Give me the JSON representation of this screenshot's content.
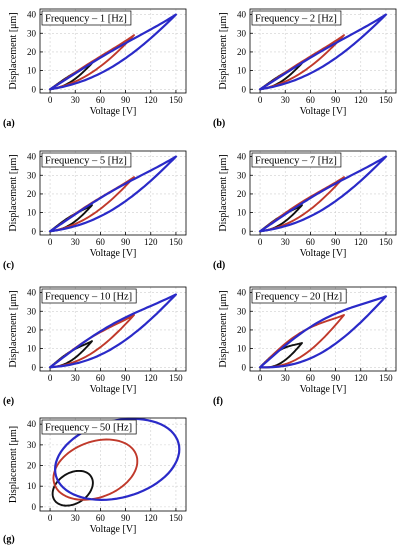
{
  "figure": {
    "panel_letters": [
      "(a)",
      "(b)",
      "(c)",
      "(d)",
      "(e)",
      "(f)",
      "(g)"
    ]
  },
  "chart_data": [
    {
      "type": "line",
      "title": "Frequency – 1 [Hz]",
      "xlabel": "Voltage [V]",
      "ylabel": "Displacement [μm]",
      "xlim": [
        -12,
        162
      ],
      "ylim": [
        -2,
        43
      ],
      "xticks": [
        0,
        30,
        60,
        90,
        120,
        150
      ],
      "yticks": [
        0,
        10,
        20,
        30,
        40
      ],
      "grid": true,
      "series": [
        {
          "color": "#111111",
          "loop": {
            "vmax": 50,
            "dmax": 14,
            "a": 12,
            "b": 2.5
          }
        },
        {
          "color": "#c0392b",
          "loop": {
            "vmax": 100,
            "dmax": 29,
            "a": 24,
            "b": 4
          }
        },
        {
          "color": "#2a2ac8",
          "loop": {
            "vmax": 150,
            "dmax": 40,
            "a": 38,
            "b": 6
          }
        }
      ]
    },
    {
      "type": "line",
      "title": "Frequency – 2 [Hz]",
      "xlabel": "Voltage [V]",
      "ylabel": "Displacement [μm]",
      "xlim": [
        -12,
        162
      ],
      "ylim": [
        -2,
        43
      ],
      "xticks": [
        0,
        30,
        60,
        90,
        120,
        150
      ],
      "yticks": [
        0,
        10,
        20,
        30,
        40
      ],
      "grid": true,
      "series": [
        {
          "color": "#111111",
          "loop": {
            "vmax": 50,
            "dmax": 14,
            "a": 12,
            "b": 2.5
          }
        },
        {
          "color": "#c0392b",
          "loop": {
            "vmax": 100,
            "dmax": 29,
            "a": 24,
            "b": 4
          }
        },
        {
          "color": "#2a2ac8",
          "loop": {
            "vmax": 150,
            "dmax": 40,
            "a": 38,
            "b": 6
          }
        }
      ]
    },
    {
      "type": "line",
      "title": "Frequency – 5 [Hz]",
      "xlabel": "Voltage [V]",
      "ylabel": "Displacement [μm]",
      "xlim": [
        -12,
        162
      ],
      "ylim": [
        -2,
        43
      ],
      "xticks": [
        0,
        30,
        60,
        90,
        120,
        150
      ],
      "yticks": [
        0,
        10,
        20,
        30,
        40
      ],
      "grid": true,
      "series": [
        {
          "color": "#111111",
          "loop": {
            "vmax": 50,
            "dmax": 14,
            "a": 12,
            "b": 3
          }
        },
        {
          "color": "#c0392b",
          "loop": {
            "vmax": 100,
            "dmax": 29,
            "a": 24,
            "b": 4.5
          }
        },
        {
          "color": "#2a2ac8",
          "loop": {
            "vmax": 150,
            "dmax": 40,
            "a": 38,
            "b": 7
          }
        }
      ]
    },
    {
      "type": "line",
      "title": "Frequency – 7 [Hz]",
      "xlabel": "Voltage [V]",
      "ylabel": "Displacement [μm]",
      "xlim": [
        -12,
        162
      ],
      "ylim": [
        -2,
        43
      ],
      "xticks": [
        0,
        30,
        60,
        90,
        120,
        150
      ],
      "yticks": [
        0,
        10,
        20,
        30,
        40
      ],
      "grid": true,
      "series": [
        {
          "color": "#111111",
          "loop": {
            "vmax": 50,
            "dmax": 14,
            "a": 12,
            "b": 3
          }
        },
        {
          "color": "#c0392b",
          "loop": {
            "vmax": 100,
            "dmax": 29,
            "a": 24,
            "b": 5
          }
        },
        {
          "color": "#2a2ac8",
          "loop": {
            "vmax": 150,
            "dmax": 40,
            "a": 38,
            "b": 7
          }
        }
      ]
    },
    {
      "type": "line",
      "title": "Frequency – 10 [Hz]",
      "xlabel": "Voltage [V]",
      "ylabel": "Displacement [μm]",
      "xlim": [
        -12,
        162
      ],
      "ylim": [
        -2,
        43
      ],
      "xticks": [
        0,
        30,
        60,
        90,
        120,
        150
      ],
      "yticks": [
        0,
        10,
        20,
        30,
        40
      ],
      "grid": true,
      "series": [
        {
          "color": "#111111",
          "loop": {
            "vmax": 50,
            "dmax": 14,
            "a": 12,
            "b": 3.5
          }
        },
        {
          "color": "#c0392b",
          "loop": {
            "vmax": 100,
            "dmax": 28,
            "a": 24,
            "b": 6
          }
        },
        {
          "color": "#2a2ac8",
          "loop": {
            "vmax": 150,
            "dmax": 39,
            "a": 38,
            "b": 9
          }
        }
      ]
    },
    {
      "type": "line",
      "title": "Frequency – 20 [Hz]",
      "xlabel": "Voltage [V]",
      "ylabel": "Displacement [μm]",
      "xlim": [
        -12,
        162
      ],
      "ylim": [
        -2,
        43
      ],
      "xticks": [
        0,
        30,
        60,
        90,
        120,
        150
      ],
      "yticks": [
        0,
        10,
        20,
        30,
        40
      ],
      "grid": true,
      "series": [
        {
          "color": "#111111",
          "loop": {
            "vmax": 50,
            "dmax": 13,
            "a": 12,
            "b": 5
          }
        },
        {
          "color": "#c0392b",
          "loop": {
            "vmax": 100,
            "dmax": 28,
            "a": 24,
            "b": 9
          }
        },
        {
          "color": "#2a2ac8",
          "loop": {
            "vmax": 150,
            "dmax": 38,
            "a": 38,
            "b": 12
          }
        }
      ]
    },
    {
      "type": "line",
      "title": "Frequency – 50 [Hz]",
      "xlabel": "Voltage [V]",
      "ylabel": "Displacement [μm]",
      "xlim": [
        -12,
        162
      ],
      "ylim": [
        -2,
        43
      ],
      "xticks": [
        0,
        30,
        60,
        90,
        120,
        150
      ],
      "yticks": [
        0,
        10,
        20,
        30,
        40
      ],
      "grid": true,
      "series": [
        {
          "color": "#111111",
          "ellipse": {
            "cx": 27,
            "cy": 9,
            "rx": 24,
            "ry": 8,
            "tilt": 20
          }
        },
        {
          "color": "#c0392b",
          "ellipse": {
            "cx": 54,
            "cy": 18,
            "rx": 50,
            "ry": 14,
            "tilt": 18
          }
        },
        {
          "color": "#2a2ac8",
          "ellipse": {
            "cx": 80,
            "cy": 23,
            "rx": 74,
            "ry": 19,
            "tilt": 16
          }
        }
      ]
    }
  ]
}
